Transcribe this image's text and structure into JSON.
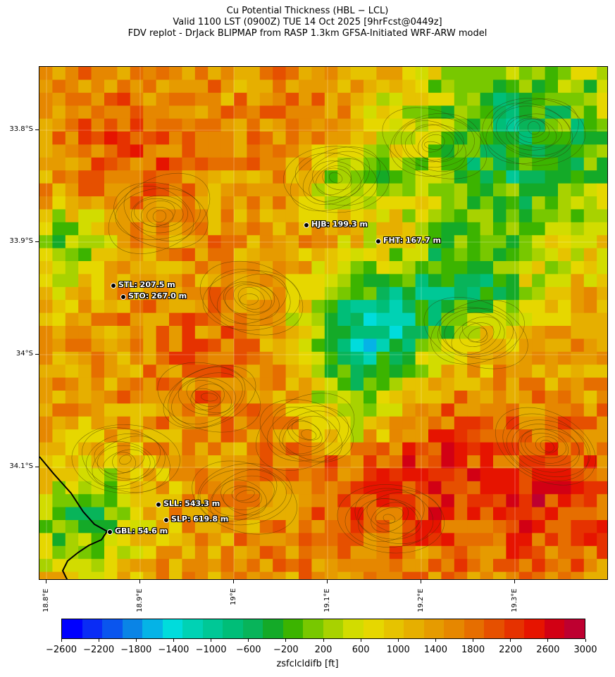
{
  "title": {
    "line1": "Cu Potential Thickness (HBL − LCL)",
    "line2": "Valid 1100 LST (0900Z) TUE 14 Oct 2025 [9hrFcst@0449z]",
    "line3": "FDV replot - DrJack BLIPMAP from RASP 1.3km GFSA-Initiated WRF-ARW model"
  },
  "map": {
    "lat_labels": [
      "33.8°S",
      "33.9°S",
      "34°S",
      "34.1°S"
    ],
    "lon_labels": [
      "18.8°E",
      "18.9°E",
      "19°E",
      "19.1°E",
      "19.2°E",
      "19.3°E"
    ],
    "stations": [
      {
        "id": "HJB",
        "label": "HJB: 199.3 m",
        "value_m": 199.3
      },
      {
        "id": "FHT",
        "label": "FHT: 167.7 m",
        "value_m": 167.7
      },
      {
        "id": "STL",
        "label": "STL: 207.5 m",
        "value_m": 207.5
      },
      {
        "id": "STO",
        "label": "STO: 267.0 m",
        "value_m": 267.0
      },
      {
        "id": "SLL",
        "label": "SLL: 543.3 m",
        "value_m": 543.3
      },
      {
        "id": "SLP",
        "label": "SLP: 619.8 m",
        "value_m": 619.8
      },
      {
        "id": "GBL",
        "label": "GBL: 54.6 m",
        "value_m": 54.6
      }
    ]
  },
  "colorbar": {
    "label": "zsfclcldifb [ft]",
    "tick_labels": [
      "−2600",
      "−2200",
      "−1800",
      "−1400",
      "−1000",
      "−600",
      "−200",
      "200",
      "600",
      "1000",
      "1400",
      "1800",
      "2200",
      "2600",
      "3000"
    ],
    "colors": [
      "#0000ff",
      "#0a2cf5",
      "#0a55ee",
      "#0a84e6",
      "#05b3e6",
      "#00dcdc",
      "#00d2b4",
      "#00c896",
      "#00be78",
      "#08b45a",
      "#14aa28",
      "#3cb400",
      "#78c800",
      "#a8d200",
      "#d2dc00",
      "#e6d700",
      "#e6c300",
      "#e6af00",
      "#e69b00",
      "#e68700",
      "#e66e00",
      "#e65000",
      "#e63200",
      "#e61400",
      "#d20014",
      "#be0030"
    ]
  },
  "chart_data": {
    "type": "heatmap",
    "title": "Cu Potential Thickness (HBL − LCL)",
    "variable": "zsfclcldifb",
    "units": "ft",
    "vmin": -2600,
    "vmax": 3000,
    "lon_range": [
      18.79,
      19.39
    ],
    "lat_range": [
      -34.21,
      -33.72
    ],
    "stations": [
      {
        "id": "HJB",
        "lon": 19.08,
        "lat": -33.883,
        "value_m": 199.3
      },
      {
        "id": "FHT",
        "lon": 19.155,
        "lat": -33.898,
        "value_m": 167.7
      },
      {
        "id": "STL",
        "lon": 18.867,
        "lat": -33.937,
        "value_m": 207.5
      },
      {
        "id": "STO",
        "lon": 18.878,
        "lat": -33.948,
        "value_m": 267.0
      },
      {
        "id": "SLL",
        "lon": 18.918,
        "lat": -34.133,
        "value_m": 543.3
      },
      {
        "id": "SLP",
        "lon": 18.927,
        "lat": -34.147,
        "value_m": 619.8
      },
      {
        "id": "GBL",
        "lon": 18.866,
        "lat": -34.161,
        "value_m": 54.6
      }
    ]
  }
}
